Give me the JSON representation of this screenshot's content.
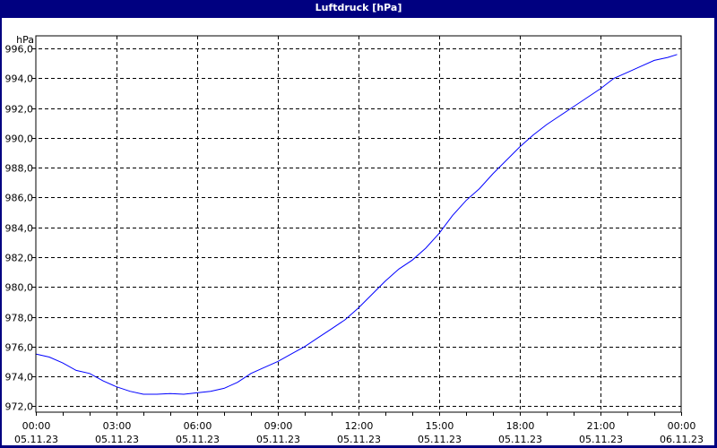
{
  "window": {
    "title": "Luftdruck [hPa]"
  },
  "chart_data": {
    "type": "line",
    "title": "Luftdruck [hPa]",
    "ylabel": "hPa",
    "xlabel": "",
    "ylim": [
      971.6,
      996.85
    ],
    "grid": true,
    "y_ticks": [
      "972,0",
      "974,0",
      "976,0",
      "978,0",
      "980,0",
      "982,0",
      "984,0",
      "986,0",
      "988,0",
      "990,0",
      "992,0",
      "994,0",
      "996,0"
    ],
    "y_tick_values": [
      972,
      974,
      976,
      978,
      980,
      982,
      984,
      986,
      988,
      990,
      992,
      994,
      996
    ],
    "x_ticks": [
      {
        "time": "00:00",
        "date": "05.11.23",
        "hours": 0
      },
      {
        "time": "03:00",
        "date": "05.11.23",
        "hours": 3
      },
      {
        "time": "06:00",
        "date": "05.11.23",
        "hours": 6
      },
      {
        "time": "09:00",
        "date": "05.11.23",
        "hours": 9
      },
      {
        "time": "12:00",
        "date": "05.11.23",
        "hours": 12
      },
      {
        "time": "15:00",
        "date": "05.11.23",
        "hours": 15
      },
      {
        "time": "18:00",
        "date": "05.11.23",
        "hours": 18
      },
      {
        "time": "21:00",
        "date": "05.11.23",
        "hours": 21
      },
      {
        "time": "00:00",
        "date": "06.11.23",
        "hours": 24
      }
    ],
    "line_color": "#0000ff",
    "x_hours": [
      0,
      0.5,
      1,
      1.5,
      2,
      2.5,
      3,
      3.5,
      4,
      4.5,
      5,
      5.5,
      6,
      6.5,
      7,
      7.5,
      8,
      8.5,
      9,
      9.5,
      10,
      10.5,
      11,
      11.5,
      12,
      12.5,
      13,
      13.5,
      14,
      14.5,
      15,
      15.5,
      16,
      16.5,
      17,
      17.5,
      18,
      18.5,
      19,
      19.5,
      20,
      20.5,
      21,
      21.5,
      22,
      22.5,
      23,
      23.5,
      23.85
    ],
    "values": [
      975.5,
      975.3,
      974.9,
      974.4,
      974.2,
      973.7,
      973.3,
      973.0,
      972.8,
      972.8,
      972.85,
      972.8,
      972.9,
      973.0,
      973.2,
      973.6,
      974.2,
      974.6,
      975.0,
      975.5,
      976.0,
      976.6,
      977.2,
      977.8,
      978.6,
      979.5,
      980.4,
      981.2,
      981.8,
      982.6,
      983.6,
      984.8,
      985.8,
      986.6,
      987.6,
      988.5,
      989.4,
      990.2,
      990.9,
      991.5,
      992.1,
      992.7,
      993.3,
      994.0,
      994.4,
      994.8,
      995.2,
      995.4,
      995.6
    ]
  }
}
